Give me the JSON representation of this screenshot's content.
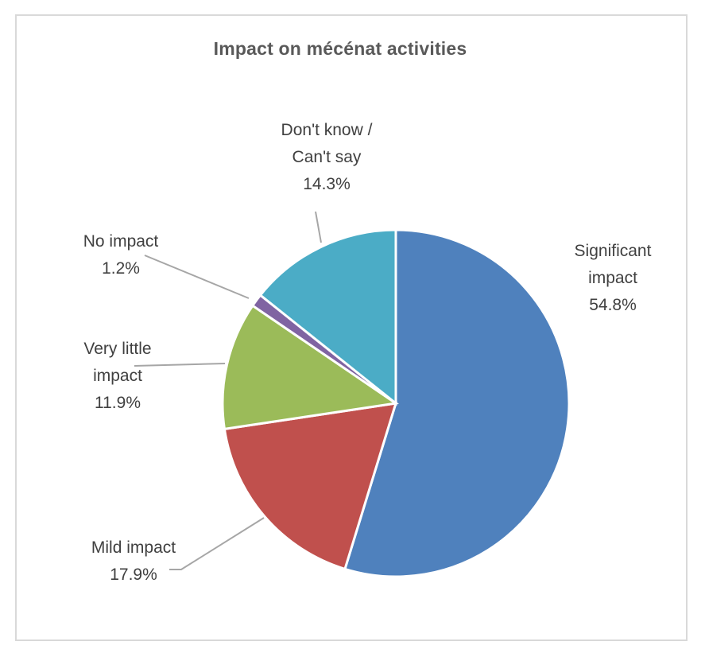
{
  "chart_data": {
    "type": "pie",
    "title": "Impact on mécénat activities",
    "slices": [
      {
        "label_lines": [
          "Significant",
          "impact"
        ],
        "value": 54.8,
        "value_label": "54.8%",
        "color": "#4f81bd"
      },
      {
        "label_lines": [
          "Mild impact"
        ],
        "value": 17.9,
        "value_label": "17.9%",
        "color": "#c0504d"
      },
      {
        "label_lines": [
          "Very little",
          "impact"
        ],
        "value": 11.9,
        "value_label": "11.9%",
        "color": "#9bbb59"
      },
      {
        "label_lines": [
          "No impact"
        ],
        "value": 1.2,
        "value_label": "1.2%",
        "color": "#8064a2"
      },
      {
        "label_lines": [
          "Don't know /",
          "Can't say"
        ],
        "value": 14.3,
        "value_label": "14.3%",
        "color": "#4bacc6"
      }
    ],
    "legend": "none",
    "data_labels": "outside with leader lines"
  }
}
